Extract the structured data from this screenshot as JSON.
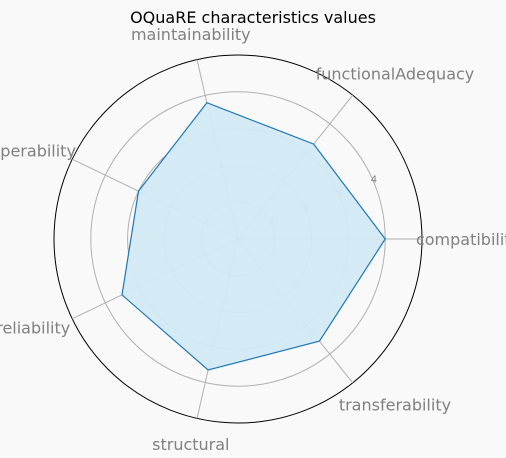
{
  "chart_data": {
    "type": "radar",
    "title": "OQuaRE characteristics values",
    "axes": [
      "compatibility",
      "functionalAdequacy",
      "maintainability",
      "operability",
      "reliability",
      "structural",
      "transferability"
    ],
    "values": [
      4.0,
      3.3,
      3.8,
      3.0,
      3.5,
      3.65,
      3.55
    ],
    "rticks": [
      1,
      2,
      3,
      4
    ],
    "rlim": [
      0,
      5
    ],
    "colors": {
      "line": "#1f77b4",
      "fill": "#d2eaf6",
      "grid": "#b0b0b0",
      "frame": "#000000",
      "background": "#f9f9f9"
    }
  }
}
